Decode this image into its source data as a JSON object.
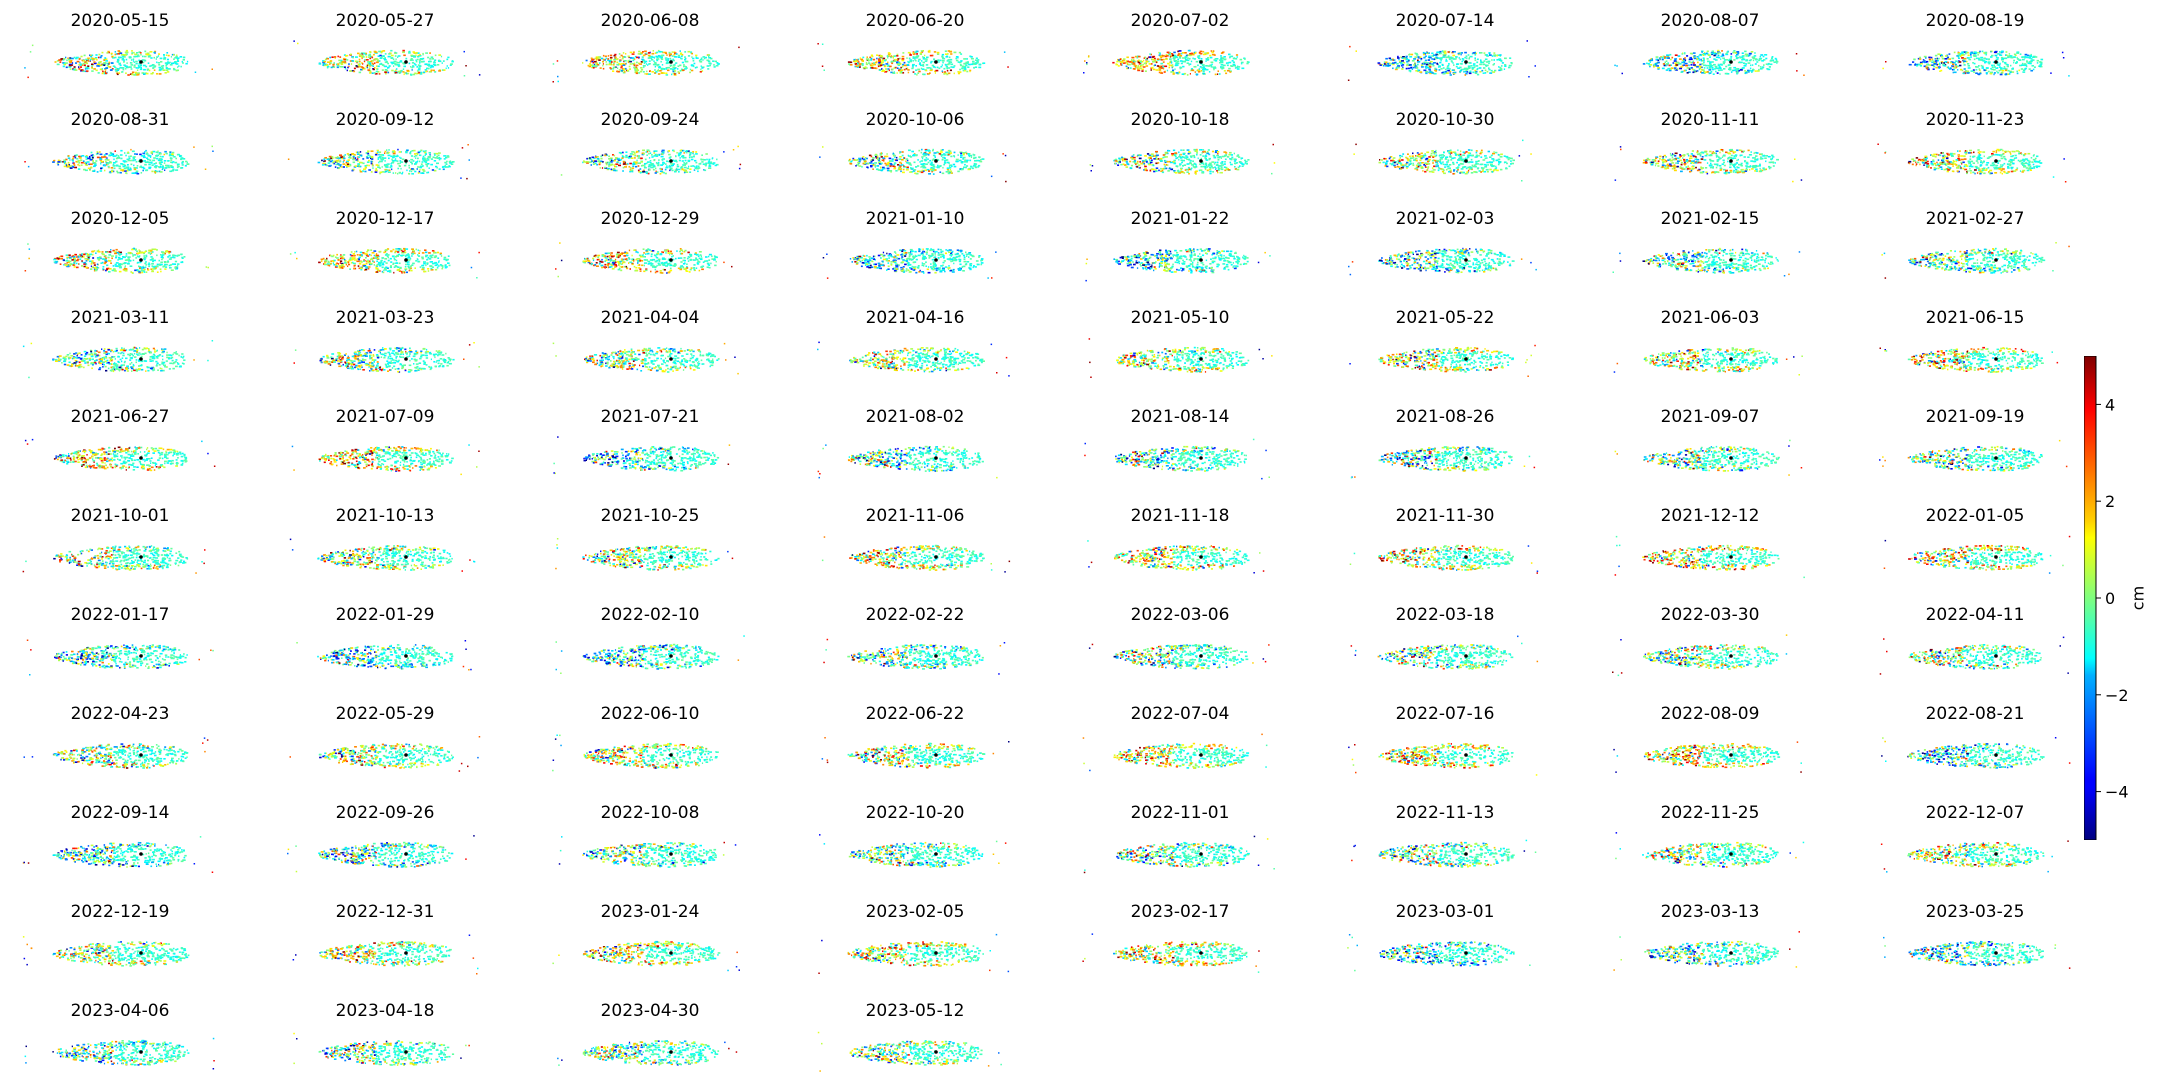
{
  "chart_data": {
    "type": "heatmap",
    "colormap": "jet",
    "colorbar": {
      "label": "cm",
      "range": [
        -5,
        5
      ],
      "ticks": [
        -4,
        -2,
        0,
        2,
        4
      ]
    },
    "grid": false,
    "panels": [
      {
        "title": "2020-05-15"
      },
      {
        "title": "2020-05-27"
      },
      {
        "title": "2020-06-08"
      },
      {
        "title": "2020-06-20"
      },
      {
        "title": "2020-07-02"
      },
      {
        "title": "2020-07-14"
      },
      {
        "title": "2020-08-07"
      },
      {
        "title": "2020-08-19"
      },
      {
        "title": "2020-08-31"
      },
      {
        "title": "2020-09-12"
      },
      {
        "title": "2020-09-24"
      },
      {
        "title": "2020-10-06"
      },
      {
        "title": "2020-10-18"
      },
      {
        "title": "2020-10-30"
      },
      {
        "title": "2020-11-11"
      },
      {
        "title": "2020-11-23"
      },
      {
        "title": "2020-12-05"
      },
      {
        "title": "2020-12-17"
      },
      {
        "title": "2020-12-29"
      },
      {
        "title": "2021-01-10"
      },
      {
        "title": "2021-01-22"
      },
      {
        "title": "2021-02-03"
      },
      {
        "title": "2021-02-15"
      },
      {
        "title": "2021-02-27"
      },
      {
        "title": "2021-03-11"
      },
      {
        "title": "2021-03-23"
      },
      {
        "title": "2021-04-04"
      },
      {
        "title": "2021-04-16"
      },
      {
        "title": "2021-05-10"
      },
      {
        "title": "2021-05-22"
      },
      {
        "title": "2021-06-03"
      },
      {
        "title": "2021-06-15"
      },
      {
        "title": "2021-06-27"
      },
      {
        "title": "2021-07-09"
      },
      {
        "title": "2021-07-21"
      },
      {
        "title": "2021-08-02"
      },
      {
        "title": "2021-08-14"
      },
      {
        "title": "2021-08-26"
      },
      {
        "title": "2021-09-07"
      },
      {
        "title": "2021-09-19"
      },
      {
        "title": "2021-10-01"
      },
      {
        "title": "2021-10-13"
      },
      {
        "title": "2021-10-25"
      },
      {
        "title": "2021-11-06"
      },
      {
        "title": "2021-11-18"
      },
      {
        "title": "2021-11-30"
      },
      {
        "title": "2021-12-12"
      },
      {
        "title": "2022-01-05"
      },
      {
        "title": "2022-01-17"
      },
      {
        "title": "2022-01-29"
      },
      {
        "title": "2022-02-10"
      },
      {
        "title": "2022-02-22"
      },
      {
        "title": "2022-03-06"
      },
      {
        "title": "2022-03-18"
      },
      {
        "title": "2022-03-30"
      },
      {
        "title": "2022-04-11"
      },
      {
        "title": "2022-04-23"
      },
      {
        "title": "2022-05-29"
      },
      {
        "title": "2022-06-10"
      },
      {
        "title": "2022-06-22"
      },
      {
        "title": "2022-07-04"
      },
      {
        "title": "2022-07-16"
      },
      {
        "title": "2022-08-09"
      },
      {
        "title": "2022-08-21"
      },
      {
        "title": "2022-09-14"
      },
      {
        "title": "2022-09-26"
      },
      {
        "title": "2022-10-08"
      },
      {
        "title": "2022-10-20"
      },
      {
        "title": "2022-11-01"
      },
      {
        "title": "2022-11-13"
      },
      {
        "title": "2022-11-25"
      },
      {
        "title": "2022-12-07"
      },
      {
        "title": "2022-12-19"
      },
      {
        "title": "2022-12-31"
      },
      {
        "title": "2023-01-24"
      },
      {
        "title": "2023-02-05"
      },
      {
        "title": "2023-02-17"
      },
      {
        "title": "2023-03-01"
      },
      {
        "title": "2023-03-13"
      },
      {
        "title": "2023-03-25"
      },
      {
        "title": "2023-04-06"
      },
      {
        "title": "2023-04-18"
      },
      {
        "title": "2023-04-30"
      },
      {
        "title": "2023-05-12"
      }
    ]
  }
}
